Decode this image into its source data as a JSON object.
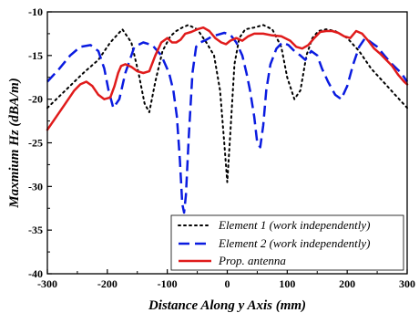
{
  "chart_data": {
    "type": "line",
    "xlabel": "Distance Along y Axis (mm)",
    "ylabel": "Maxmium Hz (dBA/m)",
    "xlim": [
      -300,
      300
    ],
    "ylim": [
      -40,
      -10
    ],
    "xticks": [
      -300,
      -200,
      -100,
      0,
      100,
      200,
      300
    ],
    "yticks": [
      -40,
      -35,
      -30,
      -25,
      -20,
      -15,
      -10
    ],
    "legend_position": "bottom-right",
    "series": [
      {
        "name": "Element 1 (work independently)",
        "color": "#000000",
        "style": "dotted",
        "x": [
          -300,
          -270,
          -240,
          -215,
          -195,
          -175,
          -160,
          -148,
          -138,
          -130,
          -120,
          -108,
          -95,
          -85,
          -75,
          -65,
          -50,
          -35,
          -22,
          -12,
          -5,
          0,
          5,
          12,
          20,
          30,
          45,
          60,
          75,
          90,
          100,
          112,
          122,
          132,
          142,
          152,
          165,
          180,
          200,
          220,
          240,
          260,
          280,
          300
        ],
        "y": [
          -21,
          -19,
          -17,
          -15.5,
          -13.5,
          -12,
          -13.5,
          -17,
          -20.5,
          -21.5,
          -18,
          -14.5,
          -12.8,
          -12.2,
          -11.8,
          -11.5,
          -12,
          -13.5,
          -15,
          -19,
          -25,
          -29.5,
          -24,
          -16,
          -13,
          -12,
          -11.8,
          -11.5,
          -12,
          -14,
          -17.5,
          -20,
          -19,
          -15,
          -13,
          -12.2,
          -12,
          -12.2,
          -13,
          -14.5,
          -16.5,
          -18,
          -19.5,
          -21
        ]
      },
      {
        "name": "Element 2 (work independently)",
        "color": "#0a1be0",
        "style": "dashed",
        "x": [
          -300,
          -280,
          -262,
          -245,
          -228,
          -215,
          -205,
          -198,
          -190,
          -180,
          -170,
          -155,
          -140,
          -125,
          -110,
          -97,
          -90,
          -84,
          -79,
          -75,
          -72,
          -69,
          -64,
          -58,
          -52,
          -45,
          -35,
          -25,
          -15,
          -5,
          5,
          15,
          25,
          32,
          38,
          45,
          50,
          55,
          60,
          65,
          72,
          82,
          92,
          102,
          112,
          122,
          130,
          140,
          150,
          158,
          168,
          180,
          190,
          200,
          210,
          220,
          230,
          240,
          250,
          262,
          275,
          290,
          300
        ],
        "y": [
          -18,
          -16.5,
          -15,
          -14,
          -13.8,
          -14.5,
          -16.5,
          -19,
          -21,
          -20,
          -17,
          -14,
          -13.5,
          -13.8,
          -15,
          -17,
          -19,
          -22,
          -27,
          -32,
          -33,
          -31,
          -24,
          -17,
          -14,
          -13.5,
          -13.2,
          -12.8,
          -12.6,
          -12.4,
          -12.6,
          -13.5,
          -15,
          -17,
          -19,
          -22,
          -25,
          -25.5,
          -23,
          -19,
          -16,
          -14.2,
          -13.5,
          -13.8,
          -14.5,
          -15,
          -15.5,
          -14.5,
          -15,
          -16.5,
          -18,
          -19.5,
          -20,
          -18.5,
          -16,
          -14,
          -13,
          -13.5,
          -14,
          -15,
          -16,
          -17,
          -18
        ]
      },
      {
        "name": "Prop. antenna",
        "color": "#e01b1b",
        "style": "solid",
        "x": [
          -300,
          -285,
          -270,
          -255,
          -245,
          -235,
          -225,
          -215,
          -205,
          -195,
          -188,
          -182,
          -177,
          -170,
          -160,
          -150,
          -140,
          -130,
          -120,
          -110,
          -100,
          -92,
          -85,
          -78,
          -70,
          -60,
          -50,
          -40,
          -30,
          -20,
          -10,
          -2,
          5,
          15,
          25,
          35,
          45,
          60,
          75,
          90,
          105,
          115,
          125,
          135,
          145,
          155,
          165,
          175,
          185,
          195,
          205,
          215,
          225,
          235,
          245,
          255,
          265,
          275,
          285,
          295,
          300
        ],
        "y": [
          -23.5,
          -22,
          -20.5,
          -19,
          -18.3,
          -18,
          -18.5,
          -19.5,
          -20,
          -19.8,
          -18.5,
          -17,
          -16.2,
          -16,
          -16.3,
          -16.8,
          -17,
          -16.8,
          -15,
          -13.5,
          -13,
          -13.5,
          -13.5,
          -13.2,
          -12.5,
          -12.3,
          -12,
          -11.8,
          -12.2,
          -13,
          -13.5,
          -13.7,
          -13.3,
          -13,
          -13.3,
          -12.8,
          -12.5,
          -12.5,
          -12.7,
          -12.8,
          -13.3,
          -14,
          -14.2,
          -13.8,
          -13,
          -12.3,
          -12.2,
          -12.2,
          -12.4,
          -12.8,
          -13,
          -12.2,
          -12.5,
          -13.3,
          -14.2,
          -14.8,
          -15.5,
          -16.2,
          -17.2,
          -18,
          -18.3
        ]
      }
    ]
  }
}
